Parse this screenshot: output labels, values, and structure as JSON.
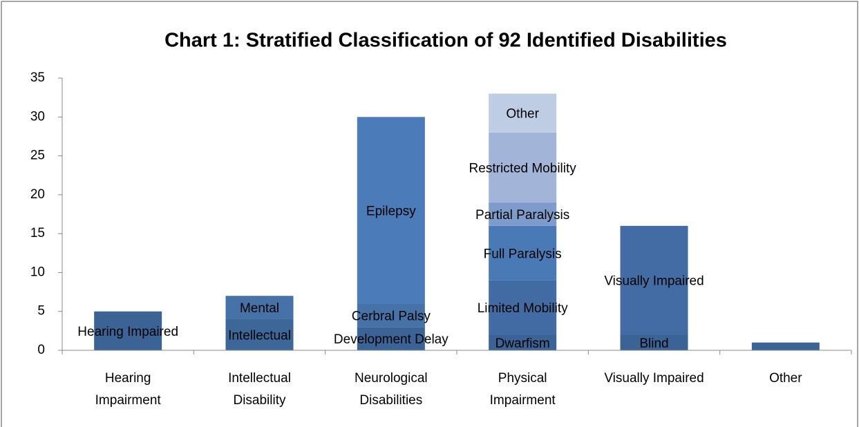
{
  "chart_data": {
    "type": "stacked-bar",
    "title": "Chart 1: Stratified Classification of 92 Identified Disabilities",
    "categories": [
      [
        "Hearing",
        "Impairment"
      ],
      [
        "Intellectual",
        "Disability"
      ],
      [
        "Neurological",
        "Disabilities"
      ],
      [
        "Physical",
        "Impairment"
      ],
      [
        "Visually Impaired"
      ],
      [
        "Other"
      ]
    ],
    "stacks": [
      [
        {
          "name": "Hearing Impaired",
          "value": 5,
          "color": "#3b6396"
        }
      ],
      [
        {
          "name": "Intellectual",
          "value": 4,
          "color": "#3d6699"
        },
        {
          "name": "Mental",
          "value": 3,
          "color": "#4672a8"
        }
      ],
      [
        {
          "name": "Development Delay",
          "value": 3,
          "color": "#3b6396"
        },
        {
          "name": "Cerbral Palsy",
          "value": 3,
          "color": "#4672a8"
        },
        {
          "name": "Epilepsy",
          "value": 24,
          "color": "#4b7bb8"
        }
      ],
      [
        {
          "name": "Dwarfism",
          "value": 2,
          "color": "#3b6396"
        },
        {
          "name": "Limited Mobility",
          "value": 7,
          "color": "#416ba2"
        },
        {
          "name": "Full Paralysis",
          "value": 7,
          "color": "#4a7ab5"
        },
        {
          "name": "Partial Paralysis",
          "value": 3,
          "color": "#7e9ccb"
        },
        {
          "name": "Restricted Mobility",
          "value": 9,
          "color": "#a2b5d8"
        },
        {
          "name": "Other",
          "value": 5,
          "color": "#bfcde4"
        }
      ],
      [
        {
          "name": "Blind",
          "value": 2,
          "color": "#3b6396"
        },
        {
          "name": "Visually Impaired",
          "value": 14,
          "color": "#426ca3"
        }
      ],
      [
        {
          "value": 1,
          "color": "#3b6396"
        }
      ]
    ],
    "ylim": [
      0,
      35
    ],
    "yticks": [
      0,
      5,
      10,
      15,
      20,
      25,
      30,
      35
    ]
  }
}
